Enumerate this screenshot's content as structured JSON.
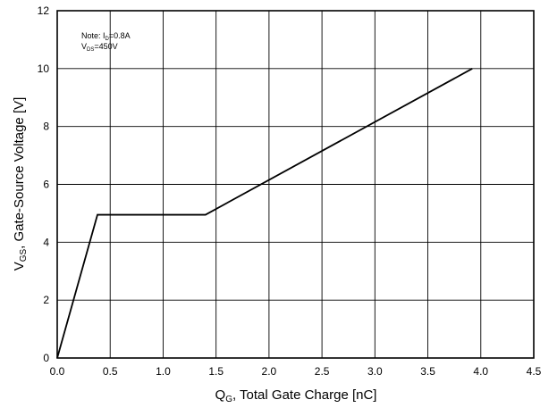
{
  "chart_data": {
    "type": "line",
    "title": "",
    "xlabel": {
      "main": "Q",
      "sub": "G",
      "rest": ", Total Gate Charge [nC]"
    },
    "ylabel": {
      "main": "V",
      "sub": "GS",
      "rest": ", Gate-Source Voltage [V]"
    },
    "xlim": [
      0,
      4.5
    ],
    "ylim": [
      0,
      12
    ],
    "xticks": [
      0.0,
      0.5,
      1.0,
      1.5,
      2.0,
      2.5,
      3.0,
      3.5,
      4.0,
      4.5
    ],
    "xtick_labels": [
      "0.0",
      "0.5",
      "1.0",
      "1.5",
      "2.0",
      "2.5",
      "3.0",
      "3.5",
      "4.0",
      "4.5"
    ],
    "yticks": [
      0,
      2,
      4,
      6,
      8,
      10,
      12
    ],
    "ytick_labels": [
      "0",
      "2",
      "4",
      "6",
      "8",
      "10",
      "12"
    ],
    "grid": true,
    "series": [
      {
        "x": [
          0.0,
          0.38,
          1.4,
          3.92
        ],
        "y": [
          0.0,
          4.95,
          4.95,
          10.0
        ]
      }
    ],
    "annotation": {
      "line1": {
        "prefix": "Note: I",
        "sub": "D",
        "suffix": "=0.8A"
      },
      "line2": {
        "prefix": "V",
        "sub": "DS",
        "suffix": "=450V"
      }
    },
    "colors": {
      "line": "#000000",
      "grid": "#000000",
      "frame": "#000000"
    }
  }
}
